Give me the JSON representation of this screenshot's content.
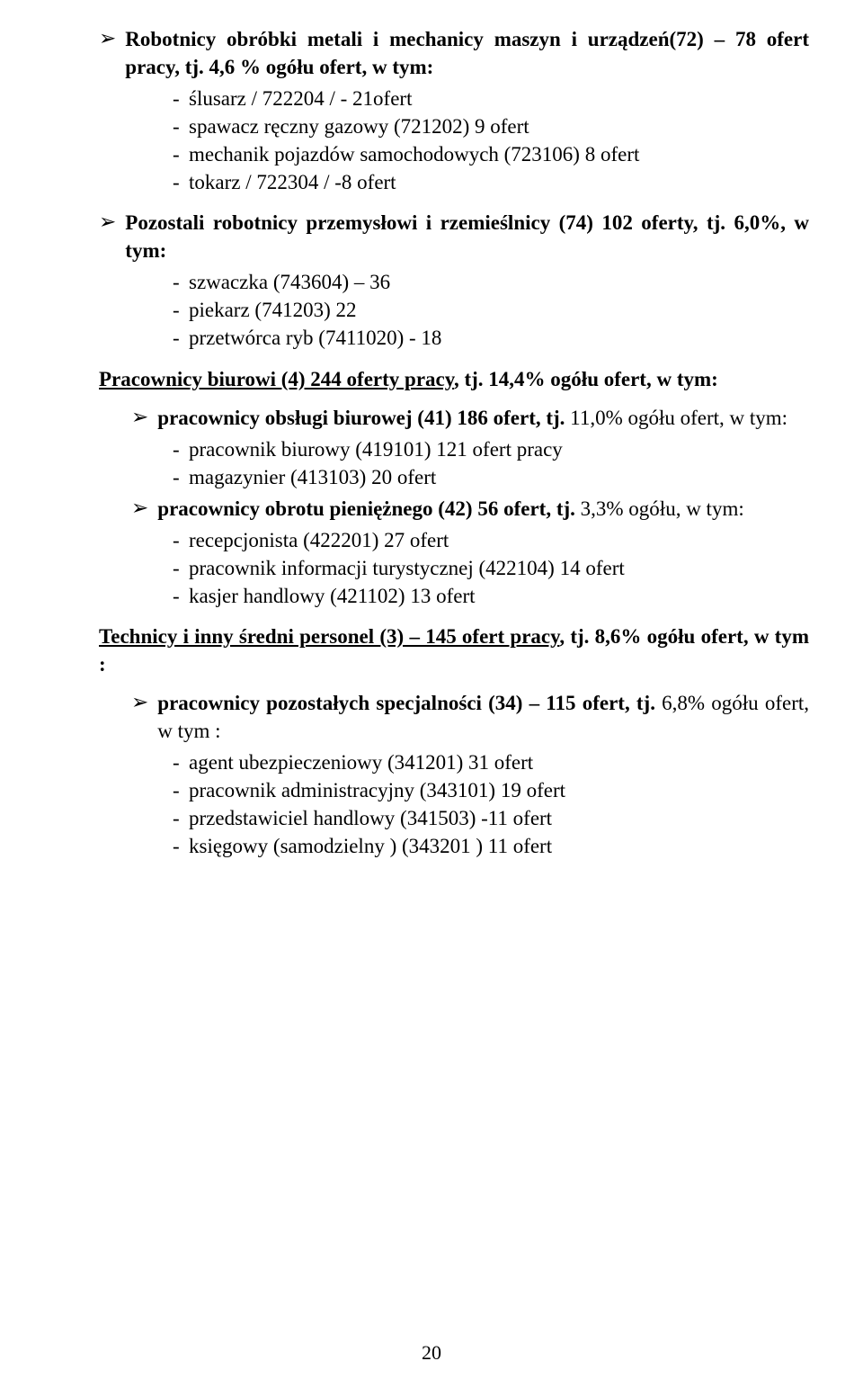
{
  "group1": {
    "arrow_label": "Robotnicy obróbki metali i mechanicy maszyn i urządzeń(72) – 78 ofert pracy, tj. 4,6 % ogółu ofert, w tym:",
    "items": [
      "ślusarz / 722204 / - 21ofert",
      "spawacz ręczny gazowy (721202) 9 ofert",
      "mechanik pojazdów samochodowych (723106) 8 ofert",
      "tokarz / 722304 / -8 ofert"
    ]
  },
  "group2": {
    "arrow_label": "Pozostali robotnicy przemysłowi i rzemieślnicy (74) 102 oferty, tj. 6,0%, w tym:",
    "items": [
      "szwaczka (743604) – 36",
      "piekarz (741203) 22",
      "przetwórca ryb (7411020) - 18"
    ]
  },
  "section_biurowi": {
    "heading_u": "Pracownicy biurowi (4) 244 oferty pracy",
    "heading_rest": ", tj. 14,4% ogółu ofert, w tym:"
  },
  "group3": {
    "arrow_label_bold": "pracownicy obsługi biurowej (41) 186 ofert, tj.",
    "arrow_label_rest": " 11,0% ogółu ofert, w tym:",
    "items": [
      "pracownik biurowy (419101) 121 ofert pracy",
      "magazynier (413103) 20 ofert"
    ]
  },
  "group4": {
    "arrow_label_bold": "pracownicy obrotu pieniężnego (42) 56 ofert, tj.",
    "arrow_label_rest": " 3,3% ogółu, w tym:",
    "items": [
      "recepcjonista (422201) 27 ofert",
      "pracownik informacji turystycznej (422104) 14 ofert",
      "kasjer handlowy (421102) 13 ofert"
    ]
  },
  "section_technicy": {
    "heading_u": "Technicy i inny średni personel (3) – 145 ofert pracy",
    "heading_rest": ", tj. 8,6% ogółu ofert, w tym :"
  },
  "group5": {
    "arrow_label_bold": "pracownicy pozostałych specjalności (34) – 115 ofert, tj.",
    "arrow_label_rest": " 6,8% ogółu ofert, w tym :",
    "items": [
      "agent ubezpieczeniowy (341201) 31 ofert",
      "pracownik administracyjny (343101) 19 ofert",
      "przedstawiciel handlowy (341503) -11 ofert",
      "księgowy (samodzielny ) (343201 ) 11 ofert"
    ]
  },
  "page_number": "20",
  "arrow_glyph": "➢"
}
